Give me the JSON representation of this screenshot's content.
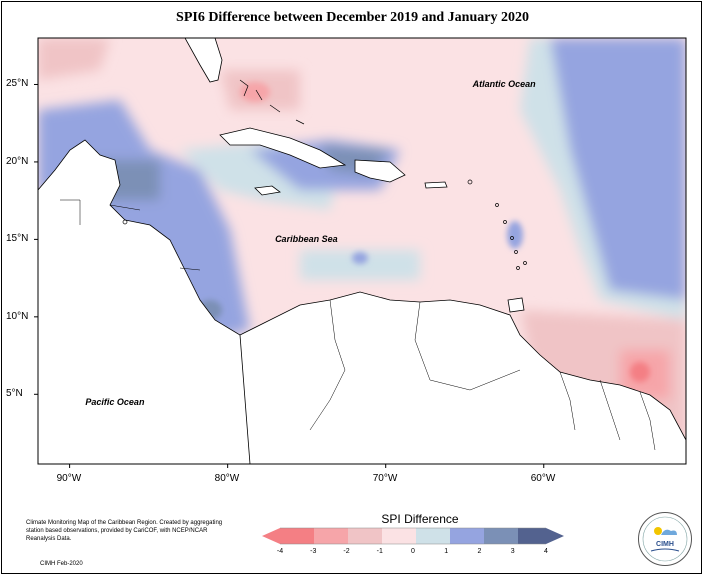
{
  "title": "SPI6 Difference between December 2019 and January 2020",
  "map": {
    "lon_range": [
      -92,
      -51
    ],
    "lat_range": [
      0.5,
      28
    ],
    "lat_ticks": [
      {
        "value": 25,
        "label": "25°N"
      },
      {
        "value": 20,
        "label": "20°N"
      },
      {
        "value": 15,
        "label": "15°N"
      },
      {
        "value": 10,
        "label": "10°N"
      },
      {
        "value": 5,
        "label": "5°N"
      }
    ],
    "lon_ticks": [
      {
        "value": -90,
        "label": "90°W"
      },
      {
        "value": -80,
        "label": "80°W"
      },
      {
        "value": -70,
        "label": "70°W"
      },
      {
        "value": -60,
        "label": "60°W"
      }
    ],
    "places": [
      {
        "name": "Atlantic Ocean",
        "lon": -64.5,
        "lat": 25
      },
      {
        "name": "Caribbean Sea",
        "lon": -77,
        "lat": 15
      },
      {
        "name": "Pacific Ocean",
        "lon": -89,
        "lat": 4.5
      }
    ]
  },
  "legend": {
    "title": "SPI Difference",
    "ticks": [
      "-4",
      "-3",
      "-2",
      "-1",
      "0",
      "1",
      "2",
      "3",
      "4"
    ],
    "colors": {
      "neg4": "#f47f84",
      "neg3": "#f6a5a9",
      "neg2": "#f0c4c6",
      "neg1": "#fbe2e4",
      "pos0": "#cfe1e8",
      "pos1": "#95a4e0",
      "pos2": "#7b90b6",
      "pos3": "#53628f"
    }
  },
  "footer": {
    "description": "Climate Monitoring Map of the Caribbean Region. Created by aggregating station based observations, provided by CariCOF, with NCEP/NCAR Reanalysis Data.",
    "credit": "CIMH Feb-2020",
    "logo_text": "CIMH"
  }
}
